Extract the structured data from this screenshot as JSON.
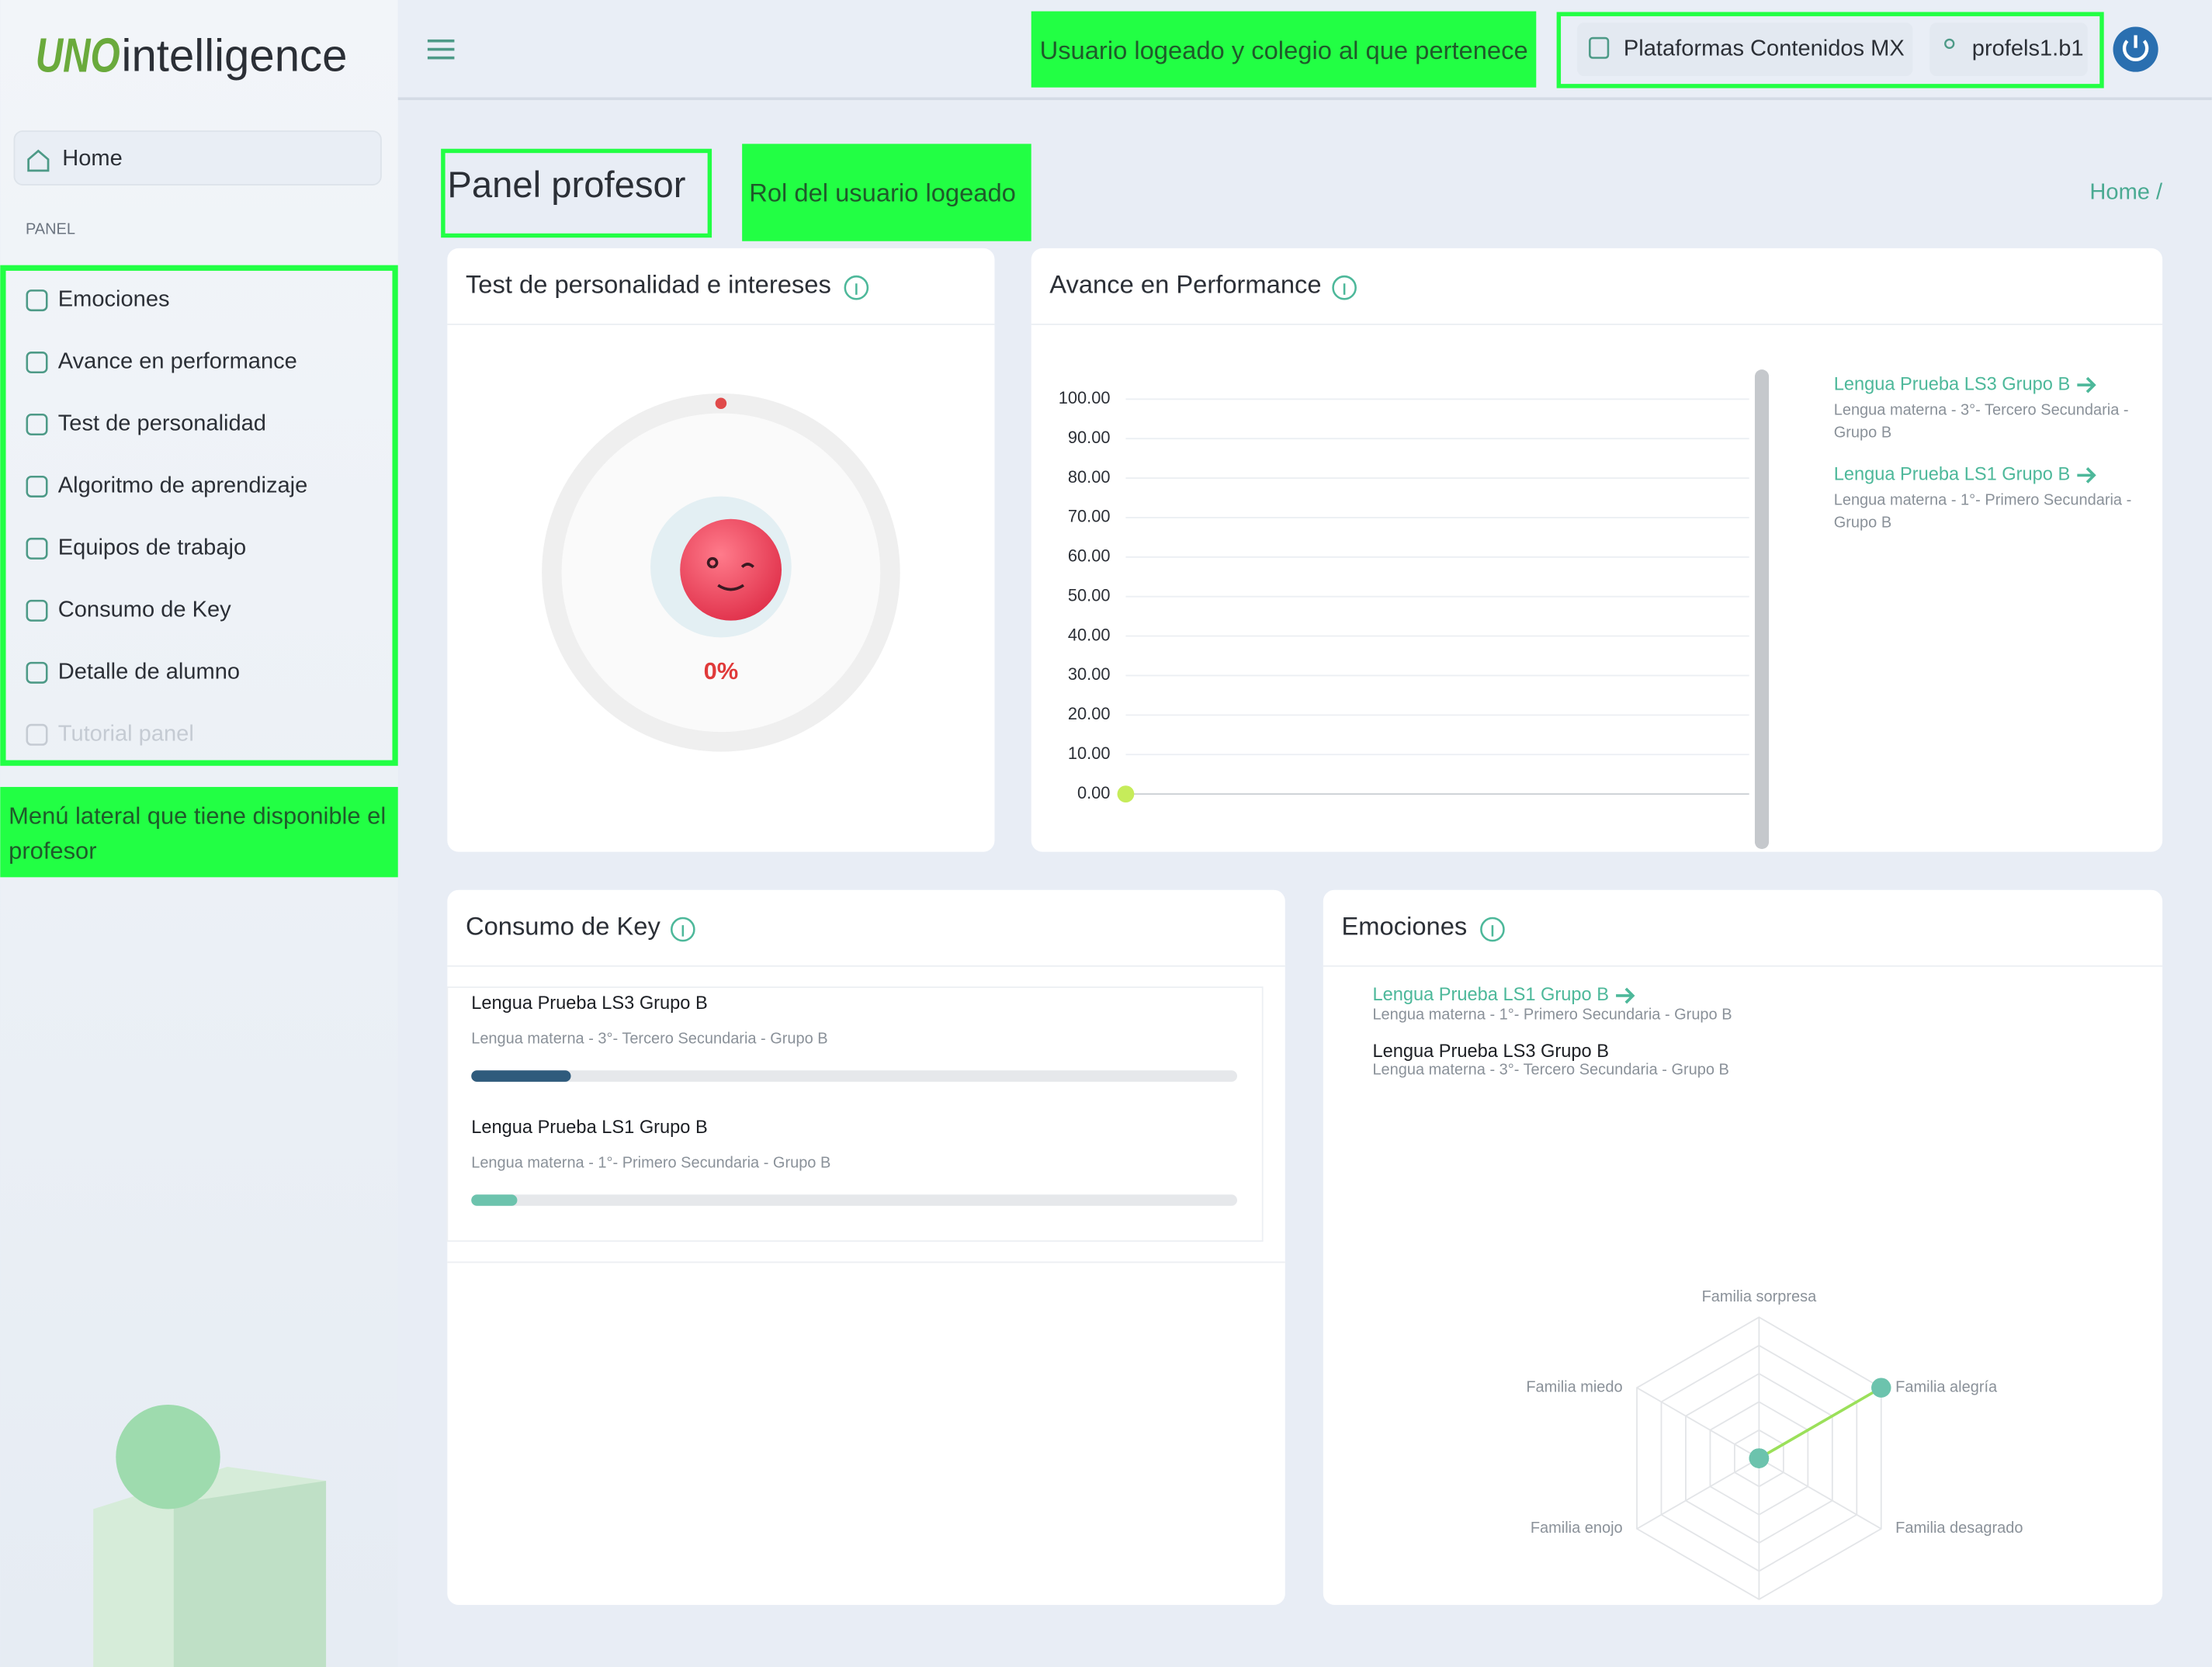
{
  "logo": {
    "prefix": "UNO",
    "name": "intelligence"
  },
  "header": {
    "annotation": "Usuario logeado y colegio al que pertenece",
    "school": "Plataformas Contenidos MX",
    "user": "profels1.b1"
  },
  "sidebar": {
    "home": "Home",
    "section": "PANEL",
    "items": [
      "Emociones",
      "Avance en performance",
      "Test de personalidad",
      "Algoritmo de aprendizaje",
      "Equipos de trabajo",
      "Consumo de Key",
      "Detalle de alumno",
      "Tutorial panel"
    ],
    "annotation": "Menú lateral que tiene disponible el profesor"
  },
  "page": {
    "title": "Panel profesor",
    "annotation": "Rol del usuario logeado",
    "breadcrumb": "Home /"
  },
  "personality": {
    "title": "Test de personalidad e intereses",
    "value": 0,
    "value_label": "0%",
    "lim": [
      0,
      100
    ]
  },
  "performance": {
    "title": "Avance en Performance",
    "chart": {
      "type": "line",
      "series": [
        {
          "color": "#c6ec5a",
          "values": [
            0
          ]
        }
      ],
      "ylim": [
        0,
        100
      ],
      "yticks": [
        {
          "value": 0,
          "label": "0.00"
        },
        {
          "value": 10,
          "label": "10.00"
        },
        {
          "value": 20,
          "label": "20.00"
        },
        {
          "value": 30,
          "label": "30.00"
        },
        {
          "value": 40,
          "label": "40.00"
        },
        {
          "value": 50,
          "label": "50.00"
        },
        {
          "value": 60,
          "label": "60.00"
        },
        {
          "value": 70,
          "label": "70.00"
        },
        {
          "value": 80,
          "label": "80.00"
        },
        {
          "value": 90,
          "label": "90.00"
        },
        {
          "value": 100,
          "label": "100.00"
        }
      ],
      "grid": true
    },
    "groups": [
      {
        "name": "Lengua Prueba LS3 Grupo B",
        "desc": "Lengua materna - 3°- Tercero Secundaria - Grupo B"
      },
      {
        "name": "Lengua Prueba LS1 Grupo B",
        "desc": "Lengua materna - 1°- Primero Secundaria - Grupo B"
      }
    ]
  },
  "keys": {
    "title": "Consumo de Key",
    "lim": [
      0,
      100
    ],
    "groups": [
      {
        "name": "Lengua Prueba LS3 Grupo B",
        "desc": "Lengua materna - 3°- Tercero Secundaria - Grupo B",
        "value": 13,
        "color": "#2f5b7c"
      },
      {
        "name": "Lengua Prueba LS1 Grupo B",
        "desc": "Lengua materna - 1°- Primero Secundaria - Grupo B",
        "value": 6,
        "color": "#6cc3ad"
      }
    ]
  },
  "emotions": {
    "title": "Emociones",
    "groups": [
      {
        "name": "Lengua Prueba LS1 Grupo B",
        "desc": "Lengua materna - 1°- Primero Secundaria - Grupo B"
      },
      {
        "name": "Lengua Prueba LS3 Grupo B",
        "desc": "Lengua materna - 3°- Tercero Secundaria - Grupo B"
      }
    ],
    "chart": {
      "type": "radar",
      "axes": [
        "Familia sorpresa",
        "Familia alegría",
        "Familia desagrado",
        null,
        "Familia enojo",
        "Familia miedo"
      ],
      "values": [
        0,
        1,
        0,
        0,
        0,
        0
      ],
      "rlim": [
        0,
        1
      ],
      "levels": 5,
      "color": "#6cc3ad",
      "line_color": "#9be05a"
    }
  }
}
